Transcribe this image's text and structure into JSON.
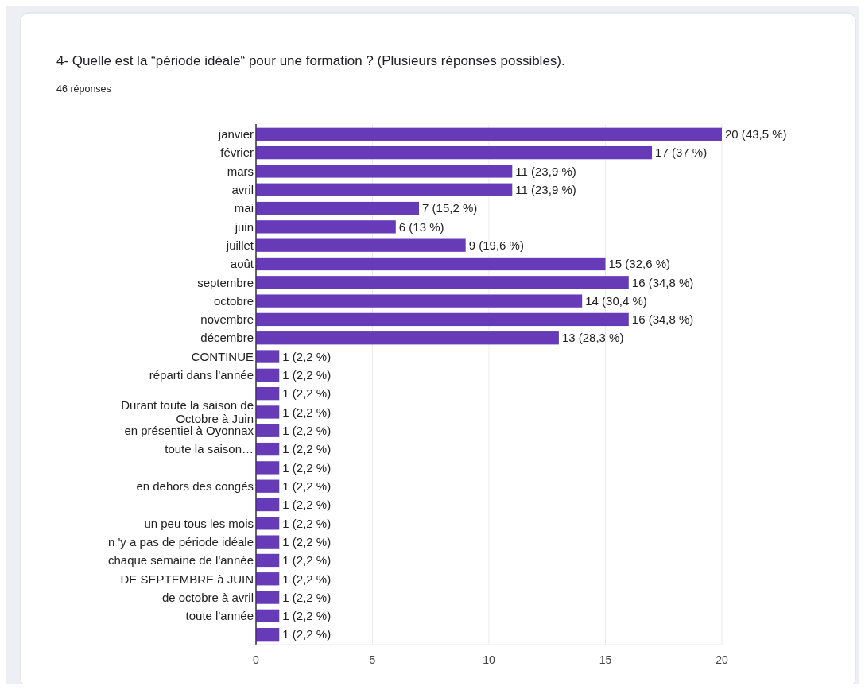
{
  "chart_data": {
    "type": "bar",
    "orientation": "horizontal",
    "title": "4- Quelle est la “période idéale“ pour une formation ? (Plusieurs réponses possibles).",
    "subtitle": "46 réponses",
    "categories": [
      "janvier",
      "février",
      "mars",
      "avril",
      "mai",
      "juin",
      "juillet",
      "août",
      "septembre",
      "octobre",
      "novembre",
      "décembre",
      "CONTINUE",
      "réparti dans l'année",
      null,
      "Durant toute la saison de Octobre à Juin",
      "en présentiel à Oyonnax",
      "toute la saison…",
      null,
      "en dehors des congés",
      null,
      "un peu tous les mois",
      "n 'y a pas de période idéale",
      "chaque semaine de l'année",
      "DE SEPTEMBRE à JUIN",
      "de octobre à avril",
      "toute l'année",
      null
    ],
    "values": [
      20,
      17,
      11,
      11,
      7,
      6,
      9,
      15,
      16,
      14,
      16,
      13,
      1,
      1,
      1,
      1,
      1,
      1,
      1,
      1,
      1,
      1,
      1,
      1,
      1,
      1,
      1,
      1
    ],
    "value_labels": [
      "20 (43,5 %)",
      "17 (37 %)",
      "11 (23,9 %)",
      "11 (23,9 %)",
      "7 (15,2 %)",
      "6 (13 %)",
      "9 (19,6 %)",
      "15 (32,6 %)",
      "16 (34,8 %)",
      "14 (30,4 %)",
      "16 (34,8 %)",
      "13 (28,3 %)",
      "1 (2,2 %)",
      "1 (2,2 %)",
      "1 (2,2 %)",
      "1 (2,2 %)",
      "1 (2,2 %)",
      "1 (2,2 %)",
      "1 (2,2 %)",
      "1 (2,2 %)",
      "1 (2,2 %)",
      "1 (2,2 %)",
      "1 (2,2 %)",
      "1 (2,2 %)",
      "1 (2,2 %)",
      "1 (2,2 %)",
      "1 (2,2 %)",
      "1 (2,2 %)"
    ],
    "color": "#673ab7",
    "xlim": [
      0,
      20
    ],
    "xticks": [
      0,
      5,
      10,
      15,
      20
    ],
    "grid": "x"
  }
}
